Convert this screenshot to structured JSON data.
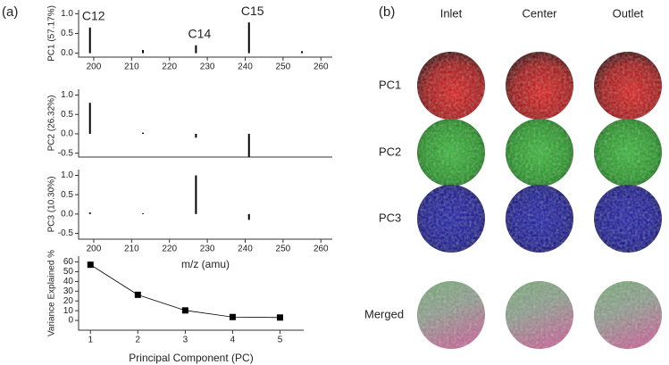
{
  "panel_a_label": "(a)",
  "chart_data": [
    {
      "type": "stem",
      "x": [
        199,
        213,
        227,
        241,
        255
      ],
      "values": [
        0.65,
        0.08,
        0.2,
        0.78,
        0.05
      ],
      "peak_labels": [
        "C12",
        null,
        "C14",
        "C15",
        null
      ],
      "ylabel": "PC1 (57.17%)",
      "color": "#000000",
      "xlim": [
        196,
        263
      ],
      "xticks": [
        200,
        210,
        220,
        230,
        240,
        250,
        260
      ],
      "ylim": [
        -0.1,
        1.1
      ],
      "yticks": [
        {
          "value": 0,
          "label": "0.0"
        },
        0.5,
        {
          "value": 1,
          "label": "1.0"
        }
      ]
    },
    {
      "type": "stem",
      "x": [
        199,
        213,
        227,
        241
      ],
      "values": [
        0.8,
        0.03,
        -0.1,
        -0.6
      ],
      "ylabel": "PC2 (26.32%)",
      "color": "#000000",
      "xlim": [
        196,
        263
      ],
      "ylim": [
        -0.6,
        1.15
      ],
      "yticks": [
        -0.5,
        {
          "value": 0,
          "label": "0.0"
        },
        0.5,
        {
          "value": 1,
          "label": "1.0"
        }
      ]
    },
    {
      "type": "stem",
      "x": [
        199,
        213,
        227,
        241
      ],
      "values": [
        0.04,
        0.02,
        1.0,
        -0.15
      ],
      "ylabel": "PC3 (10.30%)",
      "xlabel": "m/z (amu)",
      "color": "#000000",
      "xlim": [
        196,
        263
      ],
      "xticks": [
        200,
        210,
        220,
        230,
        240,
        250,
        260
      ],
      "ylim": [
        -0.65,
        1.15
      ],
      "yticks": [
        -0.5,
        {
          "value": 0,
          "label": "0.0"
        },
        0.5,
        {
          "value": 1,
          "label": "1.0"
        }
      ]
    },
    {
      "type": "line",
      "x": [
        1,
        2,
        3,
        4,
        5
      ],
      "values": [
        57.17,
        26.32,
        10.3,
        3.5,
        3
      ],
      "ylabel": "Variance Explained %",
      "xlabel": "Principal Component (PC)",
      "color": "#000000",
      "xlim": [
        0.75,
        5.5
      ],
      "xticks": [
        1,
        2,
        3,
        4,
        5
      ],
      "ylim": [
        -10,
        66
      ],
      "yticks": [
        0,
        10,
        20,
        30,
        40,
        50,
        60
      ]
    }
  ],
  "panel_b": {
    "label": "(b)",
    "columns": [
      "Inlet",
      "Center",
      "Outlet"
    ],
    "rows": [
      "PC1",
      "PC2",
      "PC3",
      "Merged"
    ]
  }
}
